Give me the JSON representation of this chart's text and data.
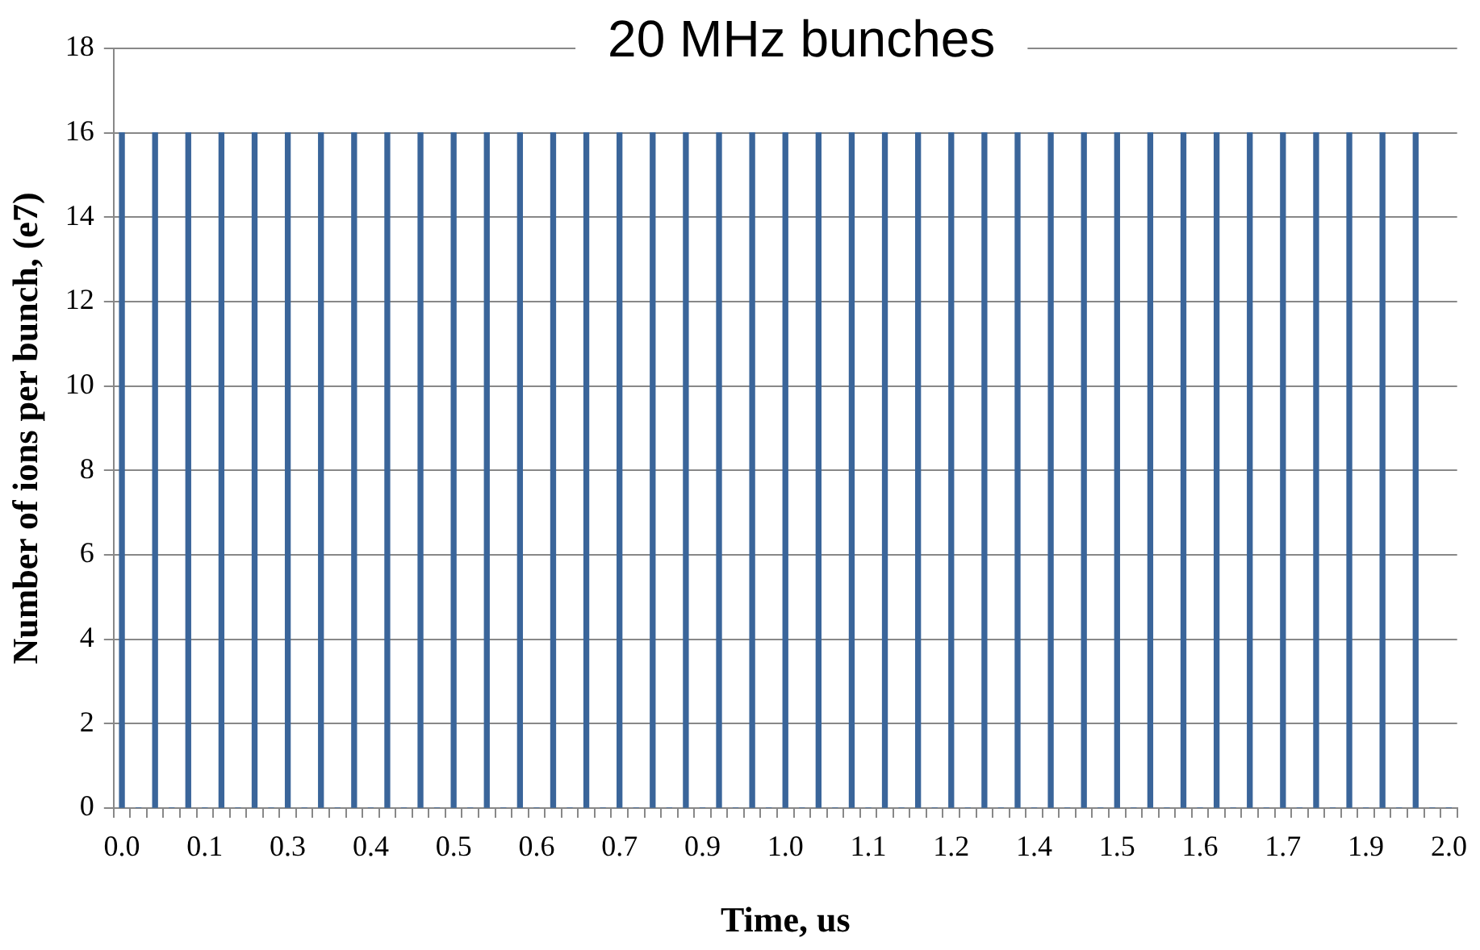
{
  "chart_data": {
    "type": "bar",
    "title": "20 MHz bunches",
    "xlabel": "Time, us",
    "ylabel": "Number of ions per bunch, (e7)",
    "categories": [
      "0.0",
      null,
      null,
      null,
      null,
      "0.1",
      null,
      null,
      null,
      null,
      "0.3",
      null,
      null,
      null,
      null,
      "0.4",
      null,
      null,
      null,
      null,
      "0.5",
      null,
      null,
      null,
      null,
      "0.6",
      null,
      null,
      null,
      null,
      "0.7",
      null,
      null,
      null,
      null,
      "0.9",
      null,
      null,
      null,
      null,
      "1.0",
      null,
      null,
      null,
      null,
      "1.1",
      null,
      null,
      null,
      null,
      "1.2",
      null,
      null,
      null,
      null,
      "1.4",
      null,
      null,
      null,
      null,
      "1.5",
      null,
      null,
      null,
      null,
      "1.6",
      null,
      null,
      null,
      null,
      "1.7",
      null,
      null,
      null,
      null,
      "1.9",
      null,
      null,
      null,
      null,
      "2.0"
    ],
    "values": [
      16,
      0,
      16,
      0,
      16,
      0,
      16,
      0,
      16,
      0,
      16,
      0,
      16,
      0,
      16,
      0,
      16,
      0,
      16,
      0,
      16,
      0,
      16,
      0,
      16,
      0,
      16,
      0,
      16,
      0,
      16,
      0,
      16,
      0,
      16,
      0,
      16,
      0,
      16,
      0,
      16,
      0,
      16,
      0,
      16,
      0,
      16,
      0,
      16,
      0,
      16,
      0,
      16,
      0,
      16,
      0,
      16,
      0,
      16,
      0,
      16,
      0,
      16,
      0,
      16,
      0,
      16,
      0,
      16,
      0,
      16,
      0,
      16,
      0,
      16,
      0,
      16,
      0,
      16,
      0,
      0
    ],
    "color": "#3a659a",
    "ylim": [
      0,
      18
    ],
    "yticks": [
      0,
      2,
      4,
      6,
      8,
      10,
      12,
      14,
      16,
      18
    ],
    "grid": "y",
    "legend": false
  }
}
